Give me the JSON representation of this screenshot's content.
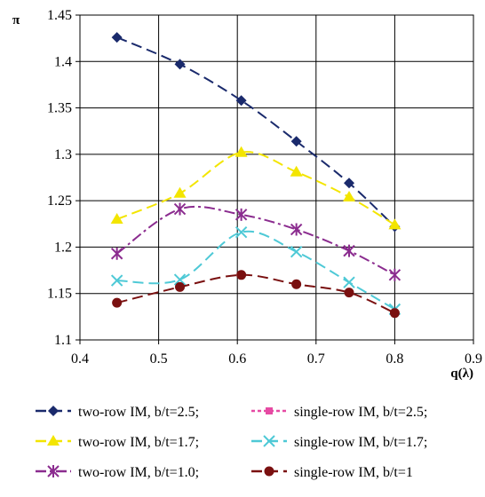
{
  "chart_data": {
    "type": "line",
    "ylabel": "π",
    "xlabel": "q(λ)",
    "xlim": [
      0.4,
      0.9
    ],
    "ylim": [
      1.1,
      1.45
    ],
    "xticks": [
      "0.4",
      "0.5",
      "0.6",
      "0.7",
      "0.8",
      "0.9"
    ],
    "yticks": [
      "1.1",
      "1.15",
      "1.2",
      "1.25",
      "1.3",
      "1.35",
      "1.4",
      "1.45"
    ],
    "grid": true,
    "legend_placement": "bottom",
    "series": [
      {
        "name": "two-row IM, b/t=2.5;",
        "color": "#1a2a6c",
        "marker": "diamond",
        "dash": "long",
        "x": [
          0.447,
          0.527,
          0.605,
          0.675,
          0.742,
          0.8
        ],
        "y": [
          1.426,
          1.397,
          1.358,
          1.314,
          1.269,
          1.222
        ]
      },
      {
        "name": "single-row IM, b/t=2.5;",
        "color": "#e64aa3",
        "marker": "square",
        "dash": "short",
        "x": [],
        "y": []
      },
      {
        "name": "two-row IM, b/t=1.7;",
        "color": "#f3e500",
        "marker": "triangle",
        "dash": "long",
        "x": [
          0.447,
          0.527,
          0.605,
          0.675,
          0.742,
          0.8
        ],
        "y": [
          1.23,
          1.258,
          1.302,
          1.281,
          1.254,
          1.224
        ]
      },
      {
        "name": "single-row IM, b/t=1.7;",
        "color": "#4ec9d6",
        "marker": "x",
        "dash": "long",
        "x": [
          0.447,
          0.527,
          0.605,
          0.675,
          0.742,
          0.8
        ],
        "y": [
          1.164,
          1.165,
          1.216,
          1.195,
          1.162,
          1.133
        ]
      },
      {
        "name": "two-row IM, b/t=1.0;",
        "color": "#8b2c8f",
        "marker": "asterisk",
        "dash": "dashdot",
        "x": [
          0.447,
          0.527,
          0.605,
          0.675,
          0.742,
          0.8
        ],
        "y": [
          1.193,
          1.241,
          1.235,
          1.219,
          1.196,
          1.17
        ]
      },
      {
        "name": "single-row IM, b/t=1",
        "color": "#7a1010",
        "marker": "circle",
        "dash": "long",
        "x": [
          0.447,
          0.527,
          0.605,
          0.675,
          0.742,
          0.8
        ],
        "y": [
          1.14,
          1.157,
          1.17,
          1.16,
          1.151,
          1.129
        ]
      }
    ]
  }
}
